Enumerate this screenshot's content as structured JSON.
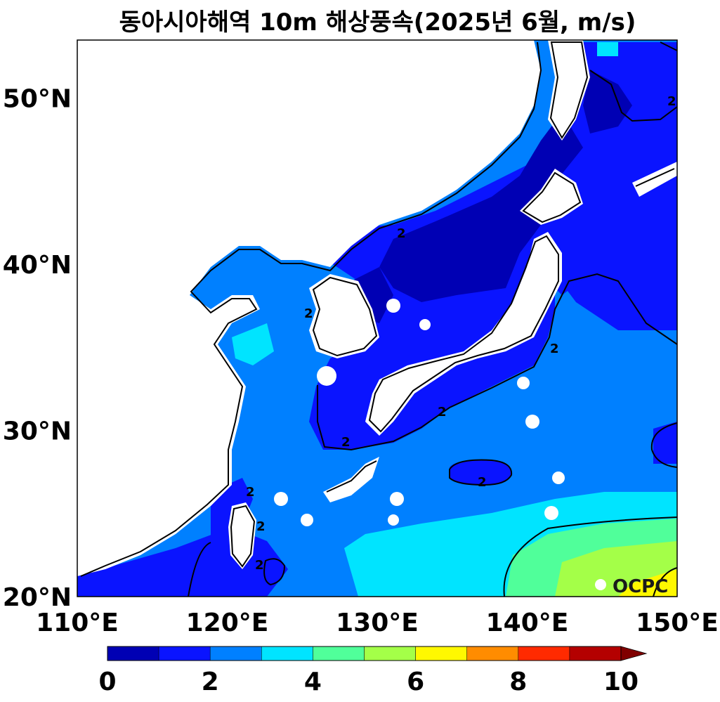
{
  "title": "동아시아해역 10m 해상풍속(2025년 6월, m/s)",
  "watermark": "OCPC",
  "chart_data": {
    "type": "heatmap",
    "title": "동아시아해역 10m 해상풍속(2025년 6월, m/s)",
    "variable": "10m sea surface wind speed",
    "units": "m/s",
    "x_range": [
      110,
      150
    ],
    "y_range": [
      20,
      53.5
    ],
    "x_ticks": [
      110,
      120,
      130,
      140,
      150
    ],
    "x_tick_labels": [
      "110°E",
      "120°E",
      "130°E",
      "140°E",
      "150°E"
    ],
    "y_ticks": [
      20,
      30,
      40,
      50
    ],
    "y_tick_labels": [
      "20°N",
      "30°N",
      "40°N",
      "50°N"
    ],
    "contour_level": 2,
    "contour_labels": [
      "2",
      "2",
      "2",
      "2",
      "2",
      "2",
      "2",
      "2",
      "2",
      "2"
    ],
    "colorbar": {
      "levels": [
        0,
        1,
        2,
        3,
        4,
        5,
        6,
        7,
        8,
        9,
        10
      ],
      "tick_values": [
        0,
        2,
        4,
        6,
        8,
        10
      ],
      "tick_labels": [
        "0",
        "2",
        "4",
        "6",
        "8",
        "10"
      ],
      "colors": [
        "#0000b4",
        "#0a14ff",
        "#0080ff",
        "#00e4ff",
        "#50ff9a",
        "#a4ff48",
        "#fff800",
        "#ff8c00",
        "#ff2a00",
        "#b40000"
      ],
      "extend": "max",
      "extend_color": "#800000"
    },
    "regions": [
      {
        "area": "Sea of Japan north",
        "speed_range": [
          0,
          1
        ]
      },
      {
        "area": "Sea of Japan south / Pacific east of Japan",
        "speed_range": [
          1,
          2
        ]
      },
      {
        "area": "Yellow Sea / East China Sea / subtropical Pacific",
        "speed_range": [
          2,
          3
        ]
      },
      {
        "area": "Pacific 22-26N",
        "speed_range": [
          3,
          4
        ]
      },
      {
        "area": "Pacific SE corner",
        "speed_range": [
          4,
          6
        ]
      },
      {
        "area": "Pacific 20-21N 146-150E",
        "speed_range": [
          6,
          7
        ]
      }
    ]
  }
}
